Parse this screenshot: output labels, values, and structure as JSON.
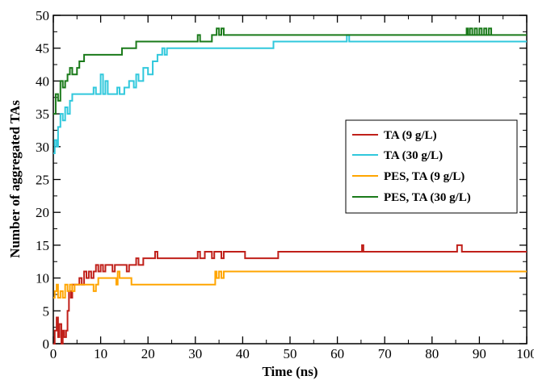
{
  "chart_data": {
    "type": "line",
    "xlabel": "Time (ns)",
    "ylabel": "Number of aggregated TAs",
    "xlim": [
      0,
      100
    ],
    "ylim": [
      0,
      50
    ],
    "xticks": [
      0,
      10,
      20,
      30,
      40,
      50,
      60,
      70,
      80,
      90,
      100
    ],
    "yticks": [
      0,
      5,
      10,
      15,
      20,
      25,
      30,
      35,
      40,
      45,
      50
    ],
    "legend_position": "right-middle",
    "grid": false,
    "series": [
      {
        "name": "TA (9 g/L)",
        "color": "#c0201a",
        "points": [
          [
            0,
            0
          ],
          [
            0.3,
            2
          ],
          [
            0.7,
            4
          ],
          [
            1.0,
            1
          ],
          [
            1.3,
            3
          ],
          [
            1.7,
            0
          ],
          [
            2.0,
            2
          ],
          [
            2.3,
            1
          ],
          [
            2.7,
            2
          ],
          [
            3.0,
            5
          ],
          [
            3.3,
            8
          ],
          [
            3.7,
            7
          ],
          [
            4.0,
            9
          ],
          [
            5.0,
            9
          ],
          [
            5.5,
            10
          ],
          [
            6.0,
            9
          ],
          [
            6.5,
            11
          ],
          [
            7.0,
            10
          ],
          [
            7.5,
            11
          ],
          [
            8.0,
            10
          ],
          [
            8.5,
            11
          ],
          [
            9.0,
            12
          ],
          [
            9.5,
            11
          ],
          [
            10.0,
            12
          ],
          [
            10.5,
            11
          ],
          [
            11.0,
            12
          ],
          [
            12.0,
            12
          ],
          [
            12.5,
            11
          ],
          [
            13.0,
            12
          ],
          [
            15.0,
            12
          ],
          [
            15.5,
            11
          ],
          [
            16.0,
            12
          ],
          [
            17.0,
            12
          ],
          [
            17.5,
            13
          ],
          [
            18.0,
            12
          ],
          [
            19.0,
            13
          ],
          [
            21.0,
            13
          ],
          [
            21.5,
            14
          ],
          [
            22.0,
            13
          ],
          [
            30.0,
            13
          ],
          [
            30.5,
            14
          ],
          [
            31.0,
            13
          ],
          [
            32.0,
            14
          ],
          [
            33.0,
            14
          ],
          [
            33.5,
            13
          ],
          [
            34.0,
            14
          ],
          [
            35.0,
            14
          ],
          [
            35.5,
            13
          ],
          [
            36.0,
            14
          ],
          [
            40.0,
            14
          ],
          [
            40.5,
            13
          ],
          [
            47.0,
            13
          ],
          [
            47.5,
            14
          ],
          [
            65.0,
            14
          ],
          [
            65.2,
            15
          ],
          [
            65.5,
            14
          ],
          [
            85.0,
            14
          ],
          [
            85.3,
            15
          ],
          [
            86.0,
            15
          ],
          [
            86.3,
            14
          ],
          [
            100.0,
            14
          ]
        ]
      },
      {
        "name": "TA (30 g/L)",
        "color": "#30c8dc",
        "points": [
          [
            0,
            29
          ],
          [
            0.3,
            31
          ],
          [
            0.7,
            30
          ],
          [
            1.0,
            33
          ],
          [
            1.5,
            35
          ],
          [
            2.0,
            34
          ],
          [
            2.5,
            36
          ],
          [
            3.0,
            35
          ],
          [
            3.5,
            37
          ],
          [
            4.0,
            38
          ],
          [
            8.0,
            38
          ],
          [
            8.5,
            39
          ],
          [
            9.0,
            38
          ],
          [
            10.0,
            41
          ],
          [
            10.5,
            38
          ],
          [
            11.0,
            40
          ],
          [
            11.5,
            38
          ],
          [
            13.0,
            38
          ],
          [
            13.5,
            39
          ],
          [
            14.0,
            38
          ],
          [
            15.0,
            39
          ],
          [
            16.0,
            40
          ],
          [
            17.0,
            39
          ],
          [
            17.5,
            41
          ],
          [
            18.0,
            40
          ],
          [
            19.0,
            42
          ],
          [
            20.0,
            41
          ],
          [
            21.0,
            43
          ],
          [
            22.0,
            44
          ],
          [
            23.0,
            45
          ],
          [
            23.5,
            44
          ],
          [
            24.0,
            45
          ],
          [
            46.0,
            45
          ],
          [
            46.5,
            46
          ],
          [
            61.5,
            46
          ],
          [
            62.0,
            47
          ],
          [
            62.5,
            46
          ],
          [
            100.0,
            46
          ]
        ]
      },
      {
        "name": "PES, TA (9 g/L)",
        "color": "#ffa500",
        "points": [
          [
            0,
            7
          ],
          [
            0.3,
            8
          ],
          [
            0.7,
            9
          ],
          [
            1.0,
            7
          ],
          [
            1.5,
            8
          ],
          [
            2.0,
            7
          ],
          [
            2.5,
            9
          ],
          [
            3.0,
            8
          ],
          [
            3.5,
            9
          ],
          [
            4.0,
            8
          ],
          [
            4.5,
            9
          ],
          [
            8.0,
            9
          ],
          [
            8.5,
            8
          ],
          [
            9.0,
            9
          ],
          [
            9.5,
            10
          ],
          [
            13.0,
            10
          ],
          [
            13.3,
            9
          ],
          [
            13.6,
            11
          ],
          [
            14.0,
            10
          ],
          [
            16.0,
            10
          ],
          [
            16.5,
            9
          ],
          [
            34.0,
            9
          ],
          [
            34.2,
            11
          ],
          [
            34.5,
            10
          ],
          [
            35.0,
            11
          ],
          [
            35.5,
            10
          ],
          [
            36.0,
            11
          ],
          [
            100.0,
            11
          ]
        ]
      },
      {
        "name": "PES, TA (30 g/L)",
        "color": "#1a7a1a",
        "points": [
          [
            0,
            35
          ],
          [
            0.5,
            38
          ],
          [
            1.0,
            37
          ],
          [
            1.5,
            40
          ],
          [
            2.0,
            39
          ],
          [
            2.5,
            40
          ],
          [
            3.0,
            41
          ],
          [
            3.5,
            42
          ],
          [
            4.0,
            41
          ],
          [
            5.0,
            42
          ],
          [
            5.5,
            43
          ],
          [
            6.0,
            43
          ],
          [
            6.5,
            44
          ],
          [
            8.0,
            44
          ],
          [
            14.0,
            44
          ],
          [
            14.5,
            45
          ],
          [
            17.0,
            45
          ],
          [
            17.5,
            46
          ],
          [
            30.0,
            46
          ],
          [
            30.5,
            47
          ],
          [
            31.0,
            46
          ],
          [
            33.0,
            46
          ],
          [
            33.5,
            47
          ],
          [
            34.0,
            47
          ],
          [
            34.5,
            48
          ],
          [
            35.0,
            47
          ],
          [
            35.5,
            48
          ],
          [
            36.0,
            47
          ],
          [
            100.0,
            47
          ],
          [
            87.0,
            47
          ],
          [
            87.3,
            48
          ],
          [
            87.6,
            47
          ],
          [
            88.0,
            48
          ],
          [
            88.5,
            47
          ],
          [
            89.0,
            48
          ],
          [
            89.5,
            47
          ],
          [
            90.0,
            48
          ],
          [
            90.5,
            47
          ],
          [
            91.0,
            48
          ],
          [
            91.5,
            47
          ],
          [
            92.0,
            48
          ],
          [
            92.5,
            47
          ],
          [
            93.0,
            47
          ],
          [
            100.0,
            47
          ]
        ]
      }
    ]
  }
}
